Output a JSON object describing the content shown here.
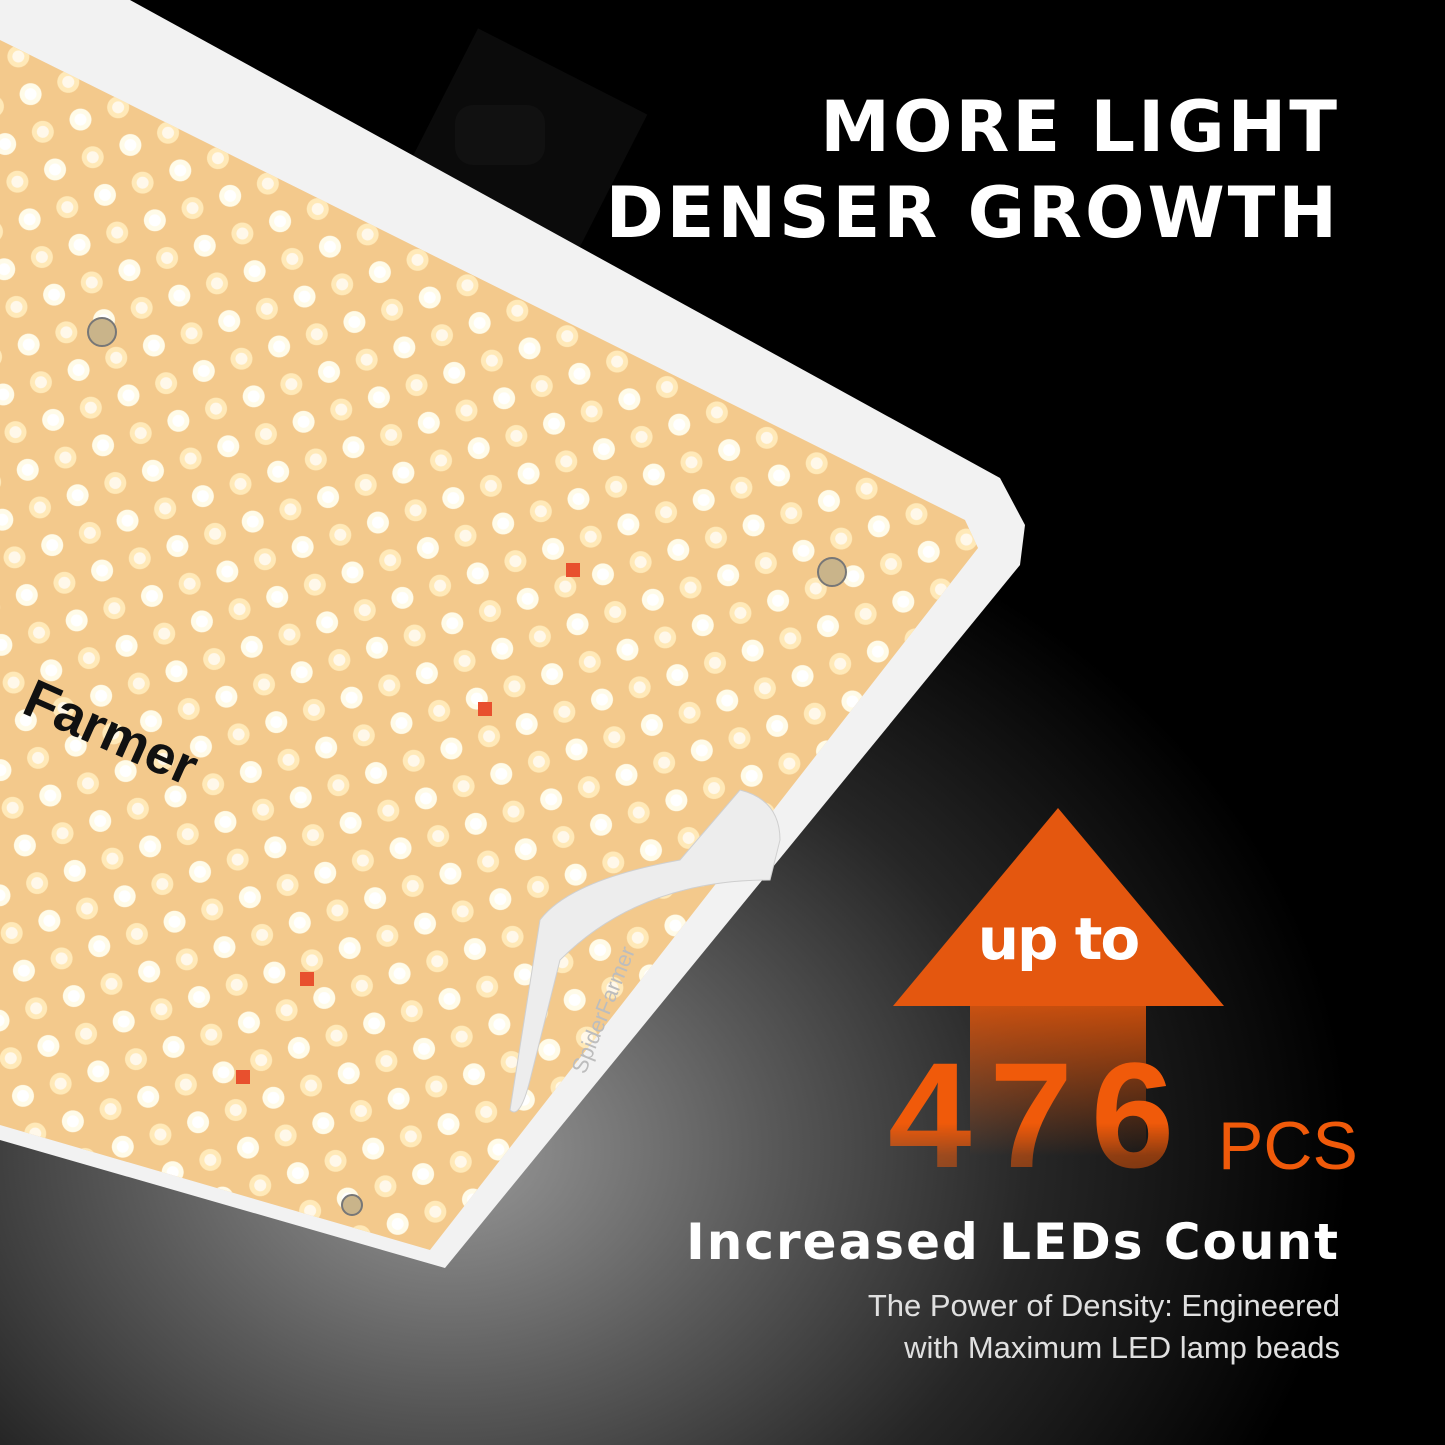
{
  "headline": {
    "line1": "MORE LIGHT",
    "line2": "DENSER GROWTH"
  },
  "badge": {
    "prefix": "up to",
    "count": "476",
    "unit": "PCS",
    "arrow_color": "#f05a0a"
  },
  "feature": {
    "title": "Increased LEDs Count",
    "description_line1": "The Power of Density: Engineered",
    "description_line2": "with Maximum LED lamp beads"
  },
  "product": {
    "logo_text": "Farmer",
    "clip_text": "SpiderFarmer"
  }
}
